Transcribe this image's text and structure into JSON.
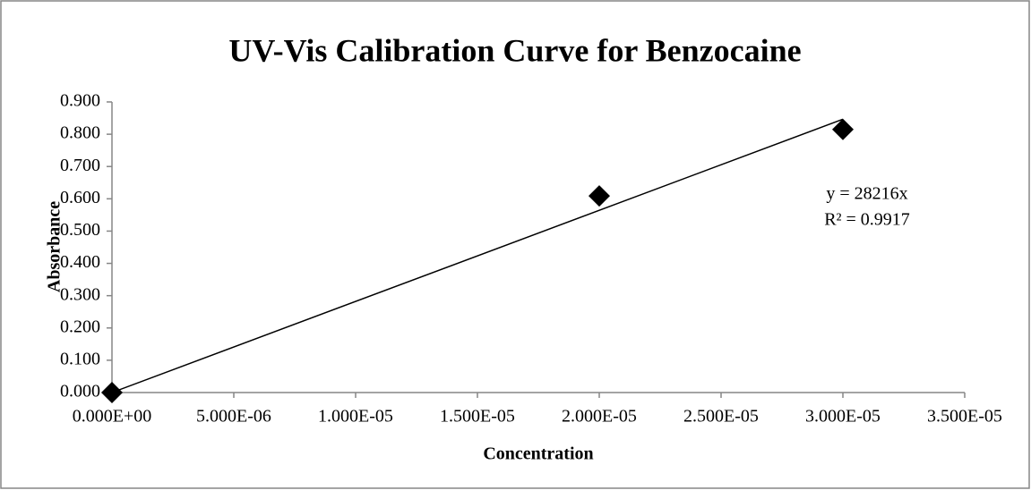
{
  "chart_data": {
    "type": "scatter",
    "title": "UV-Vis Calibration Curve for Benzocaine",
    "x_label": "Concentration",
    "y_label": "Absorbance",
    "series": [
      {
        "name": "Absorbance",
        "color": "#000000",
        "x": [
          0,
          2e-05,
          3e-05
        ],
        "values": [
          0,
          0.609,
          0.815
        ]
      }
    ],
    "trendline": {
      "slope": 28216,
      "color": "#000000",
      "equation": "y = 28216x",
      "r_squared": "R² = 0.9917"
    },
    "xlim": [
      0,
      3.5e-05
    ],
    "xticks": [
      {
        "value": 0,
        "label": "0.000E+00"
      },
      {
        "value": 5e-06,
        "label": "5.000E-06"
      },
      {
        "value": 1e-05,
        "label": "1.000E-05"
      },
      {
        "value": 1.5e-05,
        "label": "1.500E-05"
      },
      {
        "value": 2e-05,
        "label": "2.000E-05"
      },
      {
        "value": 2.5e-05,
        "label": "2.500E-05"
      },
      {
        "value": 3e-05,
        "label": "3.000E-05"
      },
      {
        "value": 3.5e-05,
        "label": "3.500E-05"
      }
    ],
    "ylim": [
      0,
      0.9
    ],
    "yticks": [
      {
        "value": 0,
        "label": "0.000"
      },
      {
        "value": 0.1,
        "label": "0.100"
      },
      {
        "value": 0.2,
        "label": "0.200"
      },
      {
        "value": 0.3,
        "label": "0.300"
      },
      {
        "value": 0.4,
        "label": "0.400"
      },
      {
        "value": 0.5,
        "label": "0.500"
      },
      {
        "value": 0.6,
        "label": "0.600"
      },
      {
        "value": 0.7,
        "label": "0.700"
      },
      {
        "value": 0.8,
        "label": "0.800"
      },
      {
        "value": 0.9,
        "label": "0.900"
      }
    ],
    "grid": false
  }
}
